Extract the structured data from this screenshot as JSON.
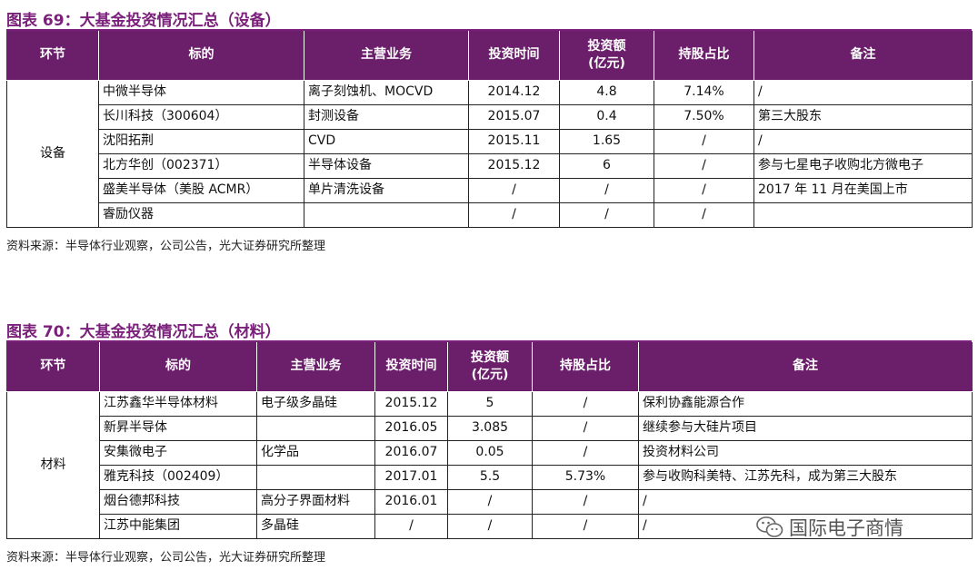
{
  "table69": {
    "title": "图表 69：大基金投资情况汇总（设备）",
    "headers": [
      "环节",
      "标的",
      "主营业务",
      "投资时间",
      "投资额\n(亿元)",
      "持股占比",
      "备注"
    ],
    "group_label": "设备",
    "rows": [
      {
        "target": "中微半导体",
        "business": "离子刻蚀机、MOCVD",
        "time": "2014.12",
        "amount": "4.8",
        "share": "7.14%",
        "note": "/"
      },
      {
        "target": "长川科技（300604）",
        "business": "封测设备",
        "time": "2015.07",
        "amount": "0.4",
        "share": "7.50%",
        "note": "第三大股东"
      },
      {
        "target": "沈阳拓荆",
        "business": "CVD",
        "time": "2015.11",
        "amount": "1.65",
        "share": "/",
        "note": "/"
      },
      {
        "target": "北方华创（002371）",
        "business": "半导体设备",
        "time": "2015.12",
        "amount": "6",
        "share": "/",
        "note": "参与七星电子收购北方微电子"
      },
      {
        "target": "盛美半导体（美股 ACMR）",
        "business": "单片清洗设备",
        "time": "/",
        "amount": "/",
        "share": "/",
        "note": "2017 年 11 月在美国上市"
      },
      {
        "target": "睿励仪器",
        "business": "",
        "time": "/",
        "amount": "/",
        "share": "/",
        "note": ""
      }
    ],
    "source": "资料来源：半导体行业观察，公司公告，光大证券研究所整理"
  },
  "table70": {
    "title": "图表 70：大基金投资情况汇总（材料）",
    "headers": [
      "环节",
      "标的",
      "主营业务",
      "投资时间",
      "投资额\n(亿元)",
      "持股占比",
      "备注"
    ],
    "group_label": "材料",
    "rows": [
      {
        "target": "江苏鑫华半导体材料",
        "business": "电子级多晶硅",
        "time": "2015.12",
        "amount": "5",
        "share": "/",
        "note": "保利协鑫能源合作"
      },
      {
        "target": "新昇半导体",
        "business": "",
        "time": "2016.05",
        "amount": "3.085",
        "share": "/",
        "note": "继续参与大硅片项目"
      },
      {
        "target": "安集微电子",
        "business": "化学品",
        "time": "2016.07",
        "amount": "0.05",
        "share": "/",
        "note": "投资材料公司"
      },
      {
        "target": "雅克科技（002409）",
        "business": "",
        "time": "2017.01",
        "amount": "5.5",
        "share": "5.73%",
        "note": "参与收购科美特、江苏先科，成为第三大股东"
      },
      {
        "target": "烟台德邦科技",
        "business": "高分子界面材料",
        "time": "2016.01",
        "amount": "/",
        "share": "/",
        "note": "/"
      },
      {
        "target": "江苏中能集团",
        "business": "多晶硅",
        "time": "/",
        "amount": "/",
        "share": "/",
        "note": "/"
      }
    ],
    "source": "资料来源：半导体行业观察，公司公告，光大证券研究所整理"
  },
  "watermark": {
    "icon": "wechat-icon",
    "text": "国际电子商情"
  }
}
